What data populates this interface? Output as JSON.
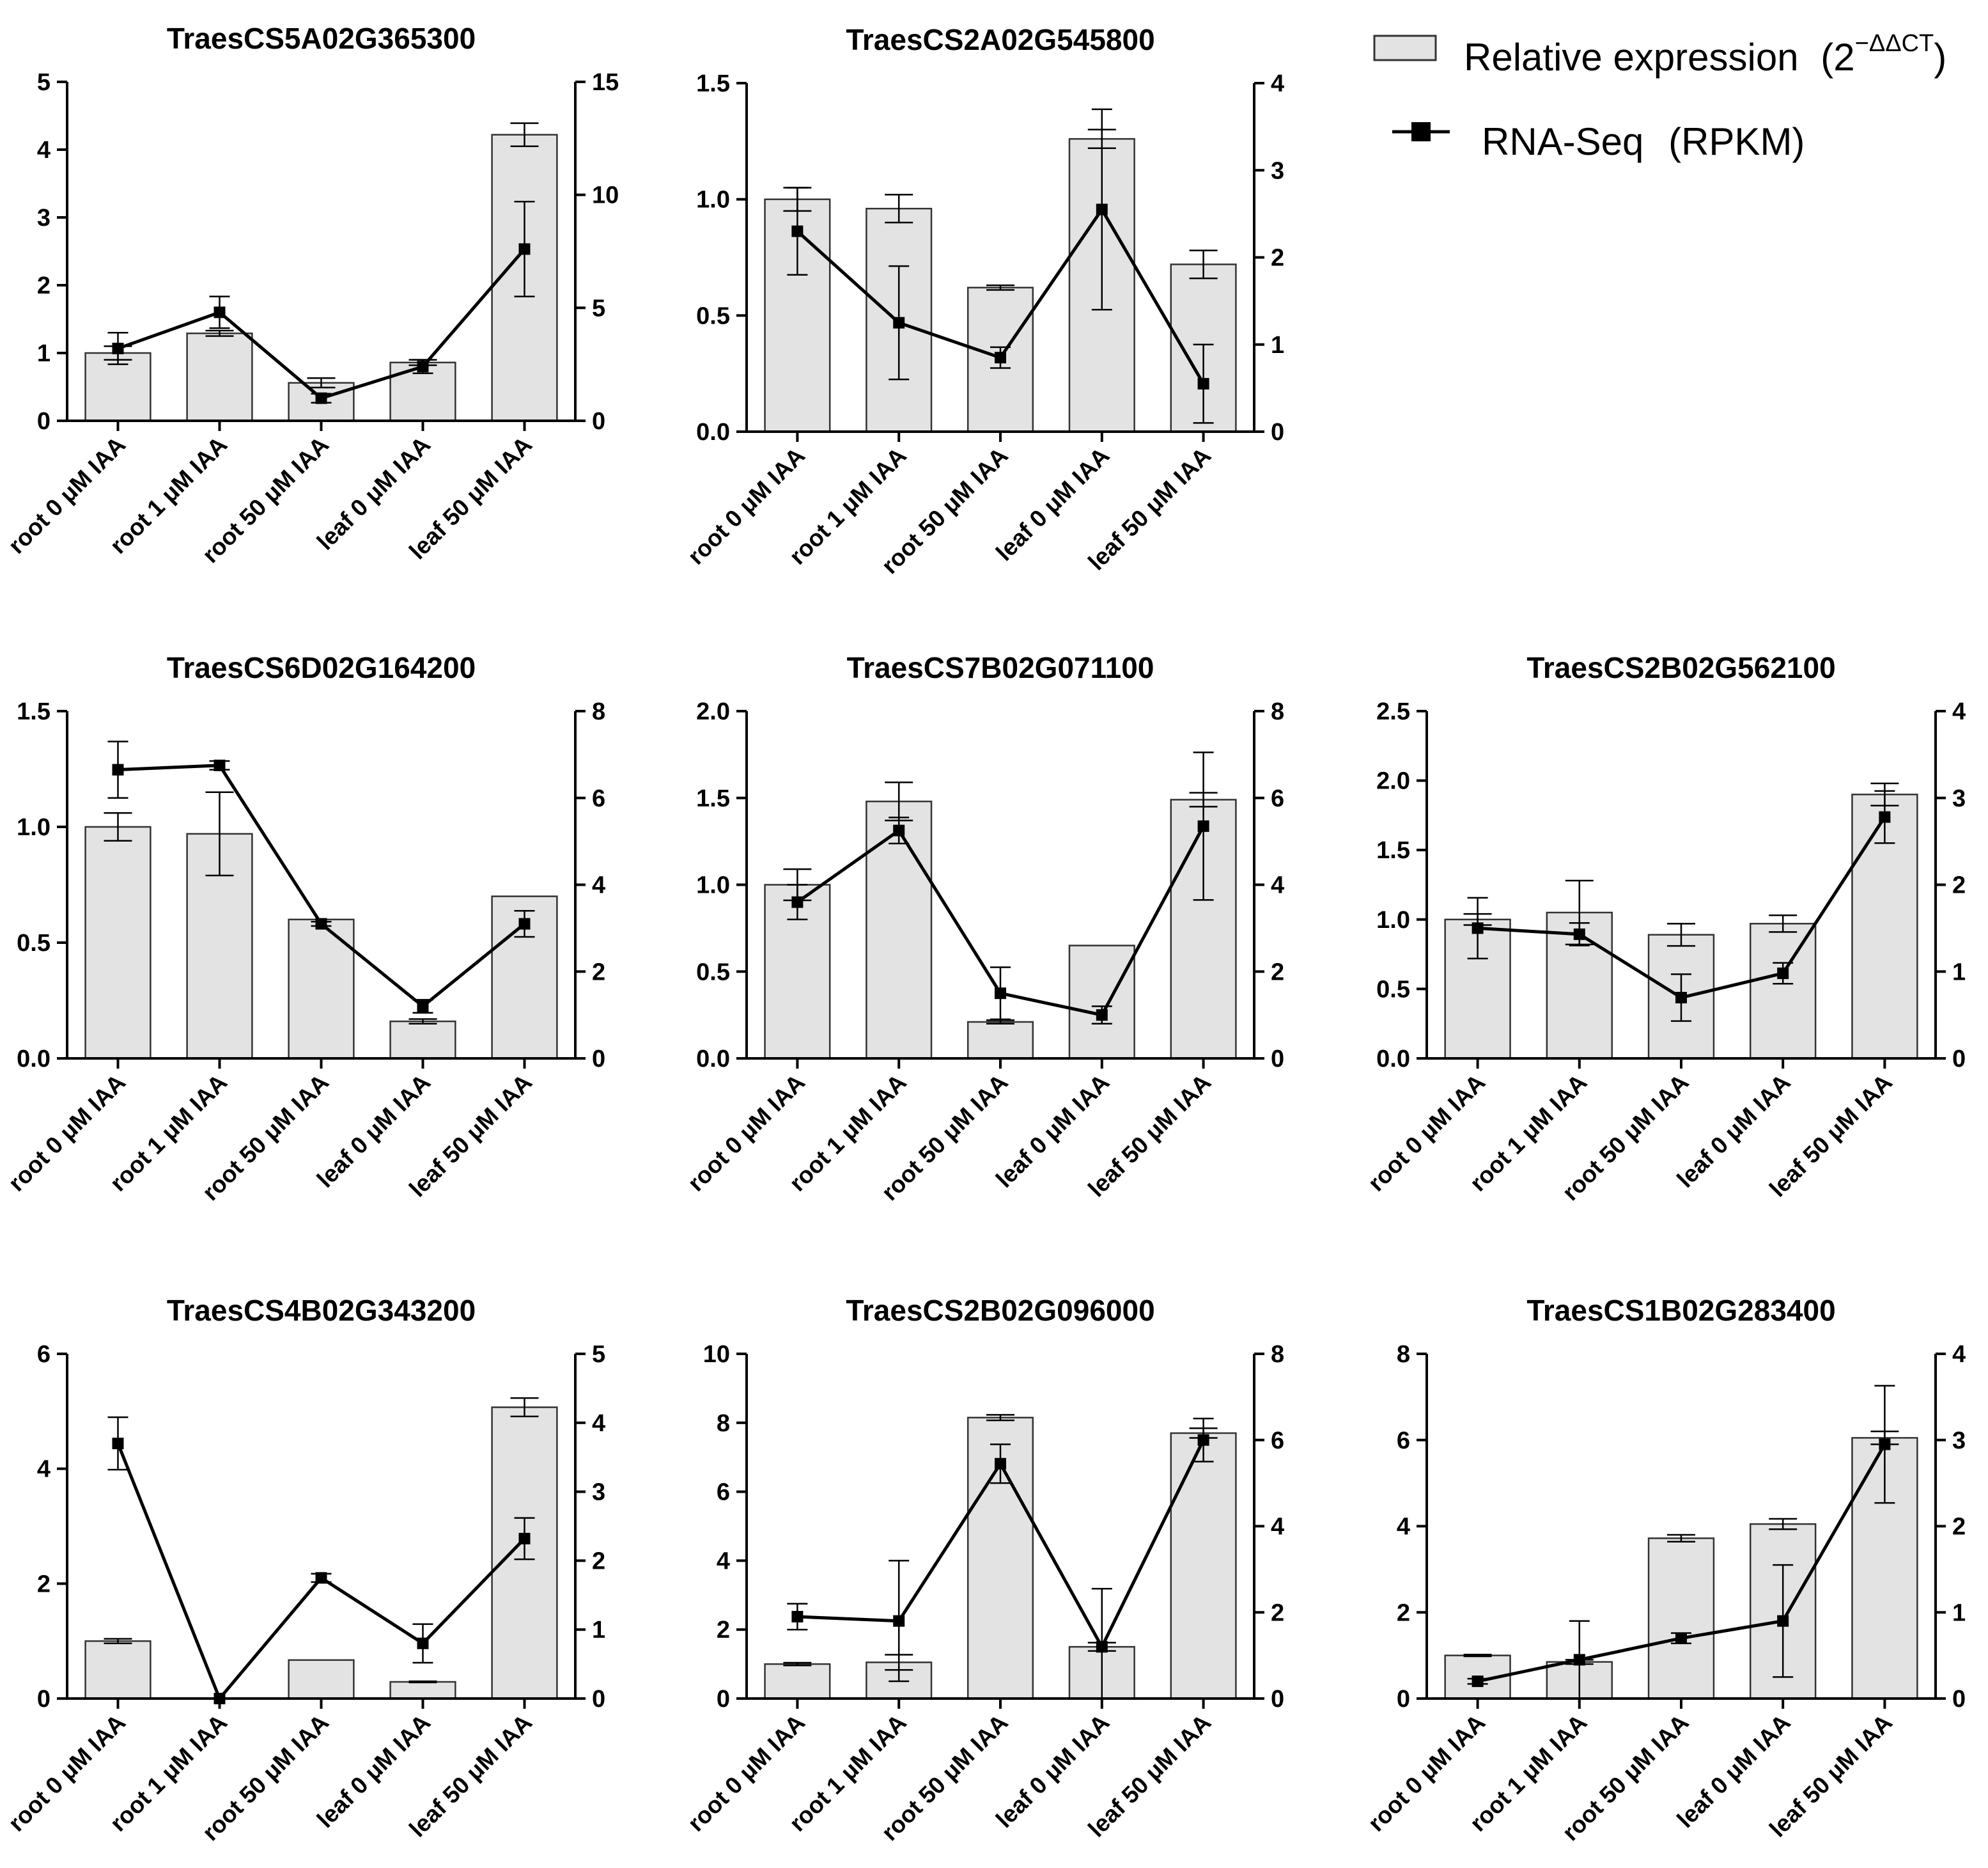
{
  "legend": {
    "bar_label": "Relative expression",
    "bar_formula_open": "(2",
    "bar_formula_sup": "−ΔΔCT",
    "bar_formula_close": ")",
    "line_label": "RNA-Seq",
    "line_unit": "(RPKM)",
    "bar_icon": "grey-bar-swatch",
    "line_icon": "line-square-marker"
  },
  "colors": {
    "bar_fill": "#e3e3e3",
    "bar_edge": "#333333",
    "line": "#000000",
    "axis": "#000000"
  },
  "chart_data": [
    {
      "type": "bar+line",
      "title": "TraesCS5A02G365300",
      "categories": [
        "root 0 μM IAA",
        "root 1 μM IAA",
        "root 50 μM IAA",
        "leaf 0 μM IAA",
        "leaf 50 μM IAA"
      ],
      "left_axis": {
        "range": [
          0,
          5
        ],
        "ticks": [
          0,
          1,
          2,
          3,
          4,
          5
        ],
        "tick_labels": [
          "0",
          "1",
          "2",
          "3",
          "4",
          "5"
        ]
      },
      "right_axis": {
        "range": [
          0,
          15
        ],
        "ticks": [
          0,
          5,
          10,
          15
        ],
        "tick_labels": [
          "0",
          "5",
          "10",
          "15"
        ]
      },
      "series": [
        {
          "name": "Relative expression",
          "kind": "bar",
          "axis": "left",
          "values": [
            1.0,
            1.29,
            0.56,
            0.86,
            4.22
          ],
          "errors": [
            0.1,
            0.04,
            0.07,
            0.04,
            0.17
          ]
        },
        {
          "name": "RNA-Seq",
          "kind": "line",
          "axis": "right",
          "values": [
            3.2,
            4.8,
            1.0,
            2.4,
            7.6
          ],
          "errors": [
            0.7,
            0.7,
            0.2,
            0.3,
            2.1
          ]
        }
      ]
    },
    {
      "type": "bar+line",
      "title": "TraesCS2A02G545800",
      "categories": [
        "root 0 μM IAA",
        "root 1 μM IAA",
        "root 50 μM IAA",
        "leaf 0 μM IAA",
        "leaf 50 μM IAA"
      ],
      "left_axis": {
        "range": [
          0,
          1.5
        ],
        "ticks": [
          0,
          0.5,
          1.0,
          1.5
        ],
        "tick_labels": [
          "0.0",
          "0.5",
          "1.0",
          "1.5"
        ]
      },
      "right_axis": {
        "range": [
          0,
          4
        ],
        "ticks": [
          0,
          1,
          2,
          3,
          4
        ],
        "tick_labels": [
          "0",
          "1",
          "2",
          "3",
          "4"
        ]
      },
      "series": [
        {
          "name": "Relative expression",
          "kind": "bar",
          "axis": "left",
          "values": [
            1.0,
            0.96,
            0.62,
            1.26,
            0.72
          ],
          "errors": [
            0.05,
            0.06,
            0.01,
            0.04,
            0.06
          ]
        },
        {
          "name": "RNA-Seq",
          "kind": "line",
          "axis": "right",
          "values": [
            2.3,
            1.25,
            0.85,
            2.55,
            0.55
          ],
          "errors": [
            0.5,
            0.65,
            0.12,
            1.15,
            0.45
          ]
        }
      ]
    },
    {
      "type": "bar+line",
      "title": "TraesCS6D02G164200",
      "categories": [
        "root 0 μM IAA",
        "root 1 μM IAA",
        "root 50 μM IAA",
        "leaf 0 μM IAA",
        "leaf 50 μM IAA"
      ],
      "left_axis": {
        "range": [
          0,
          1.5
        ],
        "ticks": [
          0,
          0.5,
          1.0,
          1.5
        ],
        "tick_labels": [
          "0.0",
          "0.5",
          "1.0",
          "1.5"
        ]
      },
      "right_axis": {
        "range": [
          0,
          8
        ],
        "ticks": [
          0,
          2,
          4,
          6,
          8
        ],
        "tick_labels": [
          "0",
          "2",
          "4",
          "6",
          "8"
        ]
      },
      "series": [
        {
          "name": "Relative expression",
          "kind": "bar",
          "axis": "left",
          "values": [
            1.0,
            0.97,
            0.6,
            0.16,
            0.7
          ],
          "errors": [
            0.06,
            0.18,
            0.0,
            0.01,
            0.0
          ]
        },
        {
          "name": "RNA-Seq",
          "kind": "line",
          "axis": "right",
          "values": [
            6.65,
            6.75,
            3.1,
            1.2,
            3.1
          ],
          "errors": [
            0.65,
            0.1,
            0.05,
            0.15,
            0.3
          ]
        }
      ]
    },
    {
      "type": "bar+line",
      "title": "TraesCS7B02G071100",
      "categories": [
        "root 0 μM IAA",
        "root 1 μM IAA",
        "root 50 μM IAA",
        "leaf 0 μM IAA",
        "leaf 50 μM IAA"
      ],
      "left_axis": {
        "range": [
          0,
          2.0
        ],
        "ticks": [
          0,
          0.5,
          1.0,
          1.5,
          2.0
        ],
        "tick_labels": [
          "0.0",
          "0.5",
          "1.0",
          "1.5",
          "2.0"
        ]
      },
      "right_axis": {
        "range": [
          0,
          8
        ],
        "ticks": [
          0,
          2,
          4,
          6,
          8
        ],
        "tick_labels": [
          "0",
          "2",
          "4",
          "6",
          "8"
        ]
      },
      "series": [
        {
          "name": "Relative expression",
          "kind": "bar",
          "axis": "left",
          "values": [
            1.0,
            1.48,
            0.21,
            0.65,
            1.49
          ],
          "errors": [
            0.09,
            0.11,
            0.01,
            0.0,
            0.04
          ]
        },
        {
          "name": "RNA-Seq",
          "kind": "line",
          "axis": "right",
          "values": [
            3.6,
            5.25,
            1.5,
            1.0,
            5.35
          ],
          "errors": [
            0.4,
            0.3,
            0.6,
            0.2,
            1.7
          ]
        }
      ]
    },
    {
      "type": "bar+line",
      "title": "TraesCS2B02G562100",
      "categories": [
        "root 0 μM IAA",
        "root 1 μM IAA",
        "root 50 μM IAA",
        "leaf 0 μM IAA",
        "leaf 50 μM IAA"
      ],
      "left_axis": {
        "range": [
          0,
          2.5
        ],
        "ticks": [
          0,
          0.5,
          1.0,
          1.5,
          2.0,
          2.5
        ],
        "tick_labels": [
          "0.0",
          "0.5",
          "1.0",
          "1.5",
          "2.0",
          "2.5"
        ]
      },
      "right_axis": {
        "range": [
          0,
          4
        ],
        "ticks": [
          0,
          1,
          2,
          3,
          4
        ],
        "tick_labels": [
          "0",
          "1",
          "2",
          "3",
          "4"
        ]
      },
      "series": [
        {
          "name": "Relative expression",
          "kind": "bar",
          "axis": "left",
          "values": [
            1.0,
            1.05,
            0.89,
            0.97,
            1.9
          ],
          "errors": [
            0.04,
            0.23,
            0.08,
            0.06,
            0.08
          ]
        },
        {
          "name": "RNA-Seq",
          "kind": "line",
          "axis": "right",
          "values": [
            1.5,
            1.43,
            0.7,
            0.98,
            2.78
          ],
          "errors": [
            0.35,
            0.13,
            0.27,
            0.12,
            0.3
          ]
        }
      ]
    },
    {
      "type": "bar+line",
      "title": "TraesCS4B02G343200",
      "categories": [
        "root 0 μM IAA",
        "root 1 μM IAA",
        "root 50 μM IAA",
        "leaf 0 μM IAA",
        "leaf 50 μM IAA"
      ],
      "left_axis": {
        "range": [
          0,
          6
        ],
        "ticks": [
          0,
          2,
          4,
          6
        ],
        "tick_labels": [
          "0",
          "2",
          "4",
          "6"
        ]
      },
      "right_axis": {
        "range": [
          0,
          5
        ],
        "ticks": [
          0,
          1,
          2,
          3,
          4,
          5
        ],
        "tick_labels": [
          "0",
          "1",
          "2",
          "3",
          "4",
          "5"
        ]
      },
      "series": [
        {
          "name": "Relative expression",
          "kind": "bar",
          "axis": "left",
          "values": [
            1.0,
            0.0,
            0.67,
            0.29,
            5.07
          ],
          "errors": [
            0.04,
            0.0,
            0.0,
            0.01,
            0.16
          ]
        },
        {
          "name": "RNA-Seq",
          "kind": "line",
          "axis": "right",
          "values": [
            3.7,
            0.0,
            1.75,
            0.8,
            2.32
          ],
          "errors": [
            0.38,
            0.0,
            0.06,
            0.28,
            0.3
          ]
        }
      ]
    },
    {
      "type": "bar+line",
      "title": "TraesCS2B02G096000",
      "categories": [
        "root 0 μM IAA",
        "root 1 μM IAA",
        "root 50 μM IAA",
        "leaf 0 μM IAA",
        "leaf 50 μM IAA"
      ],
      "left_axis": {
        "range": [
          0,
          10
        ],
        "ticks": [
          0,
          2,
          4,
          6,
          8,
          10
        ],
        "tick_labels": [
          "0",
          "2",
          "4",
          "6",
          "8",
          "10"
        ]
      },
      "right_axis": {
        "range": [
          0,
          8
        ],
        "ticks": [
          0,
          2,
          4,
          6,
          8
        ],
        "tick_labels": [
          "0",
          "2",
          "4",
          "6",
          "8"
        ]
      },
      "series": [
        {
          "name": "Relative expression",
          "kind": "bar",
          "axis": "left",
          "values": [
            1.0,
            1.05,
            8.15,
            1.5,
            7.7
          ],
          "errors": [
            0.04,
            0.22,
            0.08,
            0.12,
            0.14
          ]
        },
        {
          "name": "RNA-Seq",
          "kind": "line",
          "axis": "right",
          "values": [
            1.9,
            1.8,
            5.45,
            1.2,
            6.0
          ],
          "errors": [
            0.3,
            1.4,
            0.45,
            1.35,
            0.5
          ]
        }
      ]
    },
    {
      "type": "bar+line",
      "title": "TraesCS1B02G283400",
      "categories": [
        "root 0 μM IAA",
        "root 1 μM IAA",
        "root 50 μM IAA",
        "leaf 0 μM IAA",
        "leaf 50 μM IAA"
      ],
      "left_axis": {
        "range": [
          0,
          8
        ],
        "ticks": [
          0,
          2,
          4,
          6,
          8
        ],
        "tick_labels": [
          "0",
          "2",
          "4",
          "6",
          "8"
        ]
      },
      "right_axis": {
        "range": [
          0,
          4
        ],
        "ticks": [
          0,
          1,
          2,
          3,
          4
        ],
        "tick_labels": [
          "0",
          "1",
          "2",
          "3",
          "4"
        ]
      },
      "series": [
        {
          "name": "Relative expression",
          "kind": "bar",
          "axis": "left",
          "values": [
            1.0,
            0.85,
            3.72,
            4.05,
            6.05
          ],
          "errors": [
            0.02,
            0.05,
            0.08,
            0.12,
            0.15
          ]
        },
        {
          "name": "RNA-Seq",
          "kind": "line",
          "axis": "right",
          "values": [
            0.2,
            0.45,
            0.7,
            0.9,
            2.95
          ],
          "errors": [
            0.03,
            0.45,
            0.06,
            0.65,
            0.68
          ]
        }
      ]
    }
  ]
}
